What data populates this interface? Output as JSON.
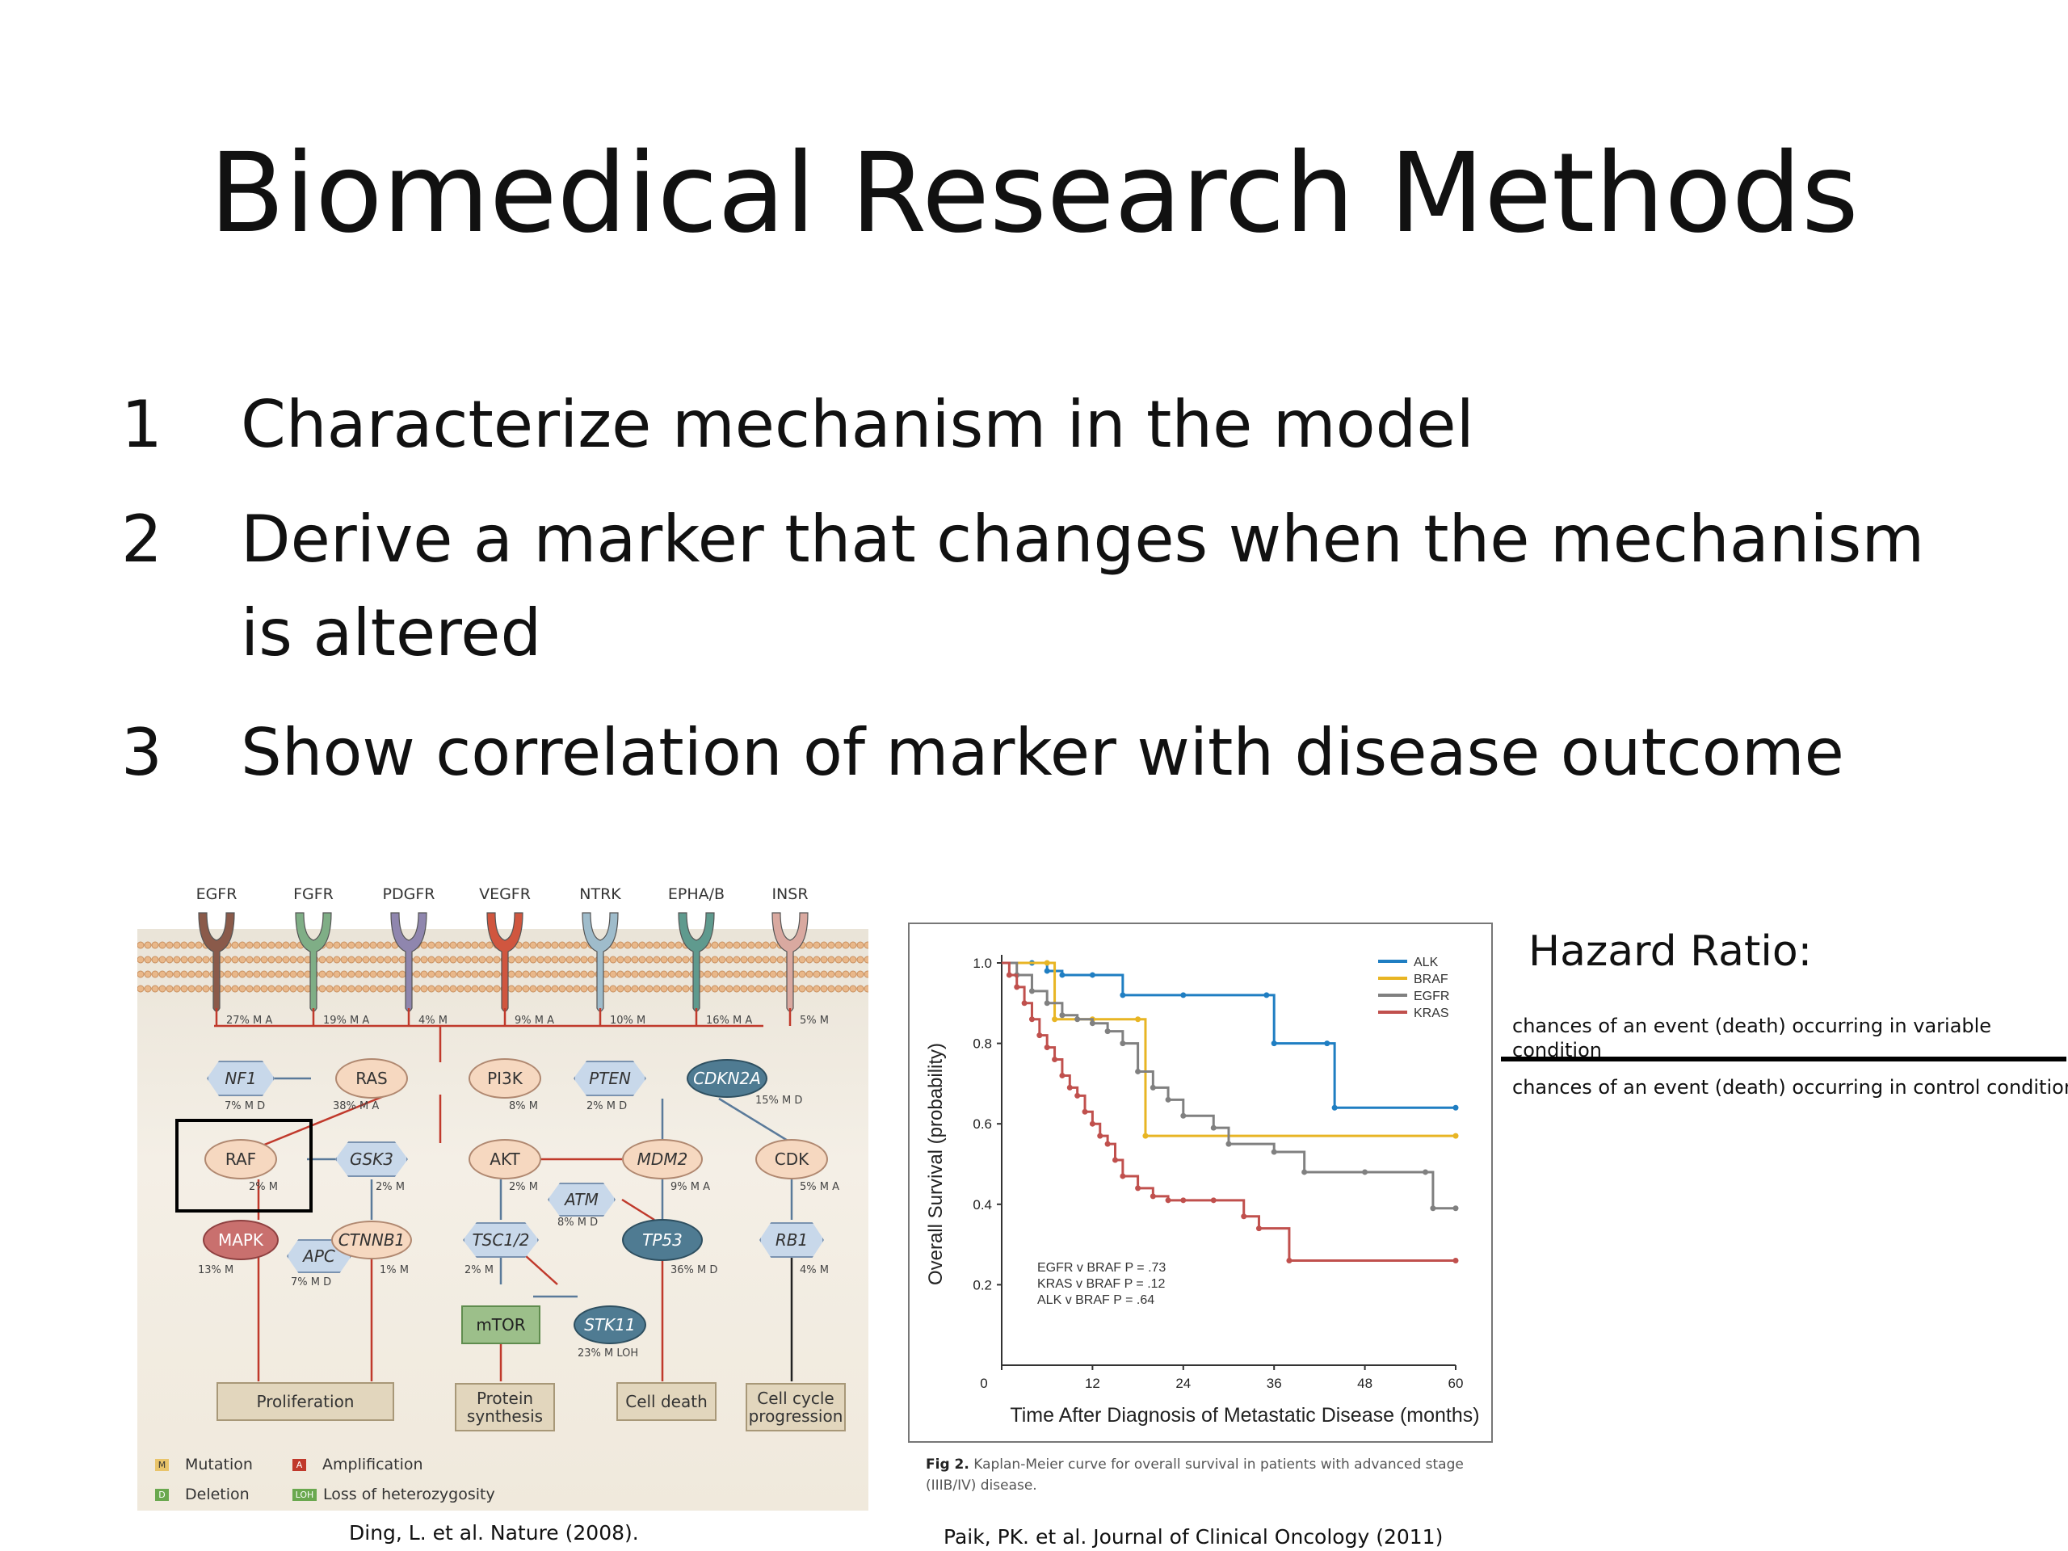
{
  "slide": {
    "title": "Biomedical Research Methods",
    "bullets": [
      {
        "num": "1",
        "lines": [
          "Characterize mechanism in the model"
        ]
      },
      {
        "num": "2",
        "lines": [
          "Derive a marker that changes when the mechanism",
          "is altered"
        ]
      },
      {
        "num": "3",
        "lines": [
          "Show correlation of marker with disease outcome"
        ]
      }
    ]
  },
  "pathway": {
    "receptors": [
      "EGFR",
      "FGFR",
      "PDGFR",
      "VEGFR",
      "NTRK",
      "EPHA/B",
      "INSR"
    ],
    "receptor_colors": [
      "#8a5a4a",
      "#7fae86",
      "#8f86ae",
      "#d0563f",
      "#9fbccb",
      "#5f9a8e",
      "#d9a9a0"
    ],
    "receptor_freqs": [
      "27% M A",
      "19% M A",
      "4% M",
      "9% M A",
      "10% M",
      "16% M A",
      "5% M"
    ],
    "nodes": {
      "nf1": "NF1",
      "ras": "RAS",
      "pi3k": "PI3K",
      "pten": "PTEN",
      "cdkn2a": "CDKN2A",
      "raf": "RAF",
      "gsk3": "GSK3",
      "akt": "AKT",
      "mdm2": "MDM2",
      "cdk": "CDK",
      "atm": "ATM",
      "mapk": "MAPK",
      "apc": "APC",
      "ctnnb1": "CTNNB1",
      "tsc12": "TSC1/2",
      "tp53": "TP53",
      "rb1": "RB1",
      "mtor": "mTOR",
      "stk11": "STK11"
    },
    "freqs": {
      "nf1": "7% M D",
      "ras": "38% M A",
      "pi3k": "8% M",
      "pten": "2% M D",
      "cdkn2a": "15% M D",
      "raf": "2% M",
      "gsk3": "2% M",
      "akt": "2% M",
      "mdm2": "9% M A",
      "cdk": "5% M A",
      "atm": "8% M D",
      "mapk": "13% M",
      "apc": "7% M D",
      "ctnnb1": "1% M",
      "tsc12": "2% M",
      "tp53": "36% M D",
      "rb1": "4% M",
      "stk11": "23% M LOH"
    },
    "outcomes": {
      "proliferation": "Proliferation",
      "protein": [
        "Protein",
        "synthesis"
      ],
      "death": "Cell death",
      "cycle": [
        "Cell cycle",
        "progression"
      ]
    },
    "legend": {
      "mutation": "Mutation",
      "amplification": "Amplification",
      "deletion": "Deletion",
      "loh": "Loss of heterozygosity",
      "m": "M",
      "a": "A",
      "d": "D",
      "loh_abbr": "LOH"
    },
    "citation": "Ding, L. et al. Nature (2008)."
  },
  "chart_data": {
    "type": "line",
    "title": "",
    "xlabel": "Time After Diagnosis of Metastatic Disease (months)",
    "ylabel": "Overall Survival (probability)",
    "xlim": [
      0,
      60
    ],
    "ylim": [
      0,
      1.0
    ],
    "xticks": [
      0,
      12,
      24,
      36,
      48,
      60
    ],
    "yticks": [
      0.2,
      0.4,
      0.6,
      0.8,
      1.0
    ],
    "legend_position": "top-right",
    "series": [
      {
        "name": "ALK",
        "color": "#1f7ec2",
        "x": [
          0,
          4,
          6,
          8,
          12,
          16,
          24,
          35,
          36,
          43,
          44,
          60
        ],
        "y": [
          1.0,
          1.0,
          0.98,
          0.97,
          0.97,
          0.92,
          0.92,
          0.92,
          0.8,
          0.8,
          0.64,
          0.64
        ]
      },
      {
        "name": "BRAF",
        "color": "#e8b524",
        "x": [
          0,
          6,
          7,
          12,
          18,
          19,
          60
        ],
        "y": [
          1.0,
          1.0,
          0.86,
          0.86,
          0.86,
          0.57,
          0.57
        ]
      },
      {
        "name": "EGFR",
        "color": "#808080",
        "x": [
          0,
          2,
          4,
          6,
          8,
          10,
          12,
          14,
          16,
          18,
          20,
          22,
          24,
          28,
          30,
          36,
          40,
          48,
          56,
          57,
          60
        ],
        "y": [
          1.0,
          0.97,
          0.93,
          0.9,
          0.87,
          0.86,
          0.85,
          0.83,
          0.8,
          0.73,
          0.69,
          0.66,
          0.62,
          0.59,
          0.55,
          0.53,
          0.48,
          0.48,
          0.48,
          0.39,
          0.39
        ]
      },
      {
        "name": "KRAS",
        "color": "#c0504d",
        "x": [
          0,
          1,
          2,
          3,
          4,
          5,
          6,
          7,
          8,
          9,
          10,
          11,
          12,
          13,
          14,
          15,
          16,
          18,
          20,
          22,
          24,
          28,
          32,
          34,
          38,
          60
        ],
        "y": [
          1.0,
          0.97,
          0.94,
          0.9,
          0.86,
          0.82,
          0.79,
          0.76,
          0.72,
          0.69,
          0.67,
          0.63,
          0.6,
          0.57,
          0.55,
          0.51,
          0.47,
          0.44,
          0.42,
          0.41,
          0.41,
          0.41,
          0.37,
          0.34,
          0.26,
          0.26
        ]
      }
    ],
    "annotation": [
      "EGFR v BRAF P = .73",
      "KRAS v BRAF P = .12",
      "ALK v BRAF P = .64"
    ],
    "caption_label": "Fig 2.",
    "caption_text": "Kaplan-Meier curve for overall survival in patients with advanced stage (IIIB/IV) disease.",
    "citation": "Paik, PK. et al. Journal of Clinical Oncology (2011)"
  },
  "hazard": {
    "title": "Hazard Ratio:",
    "numerator": "chances of an event (death) occurring in variable condition",
    "denominator": "chances of an event (death) occurring in control condition"
  }
}
